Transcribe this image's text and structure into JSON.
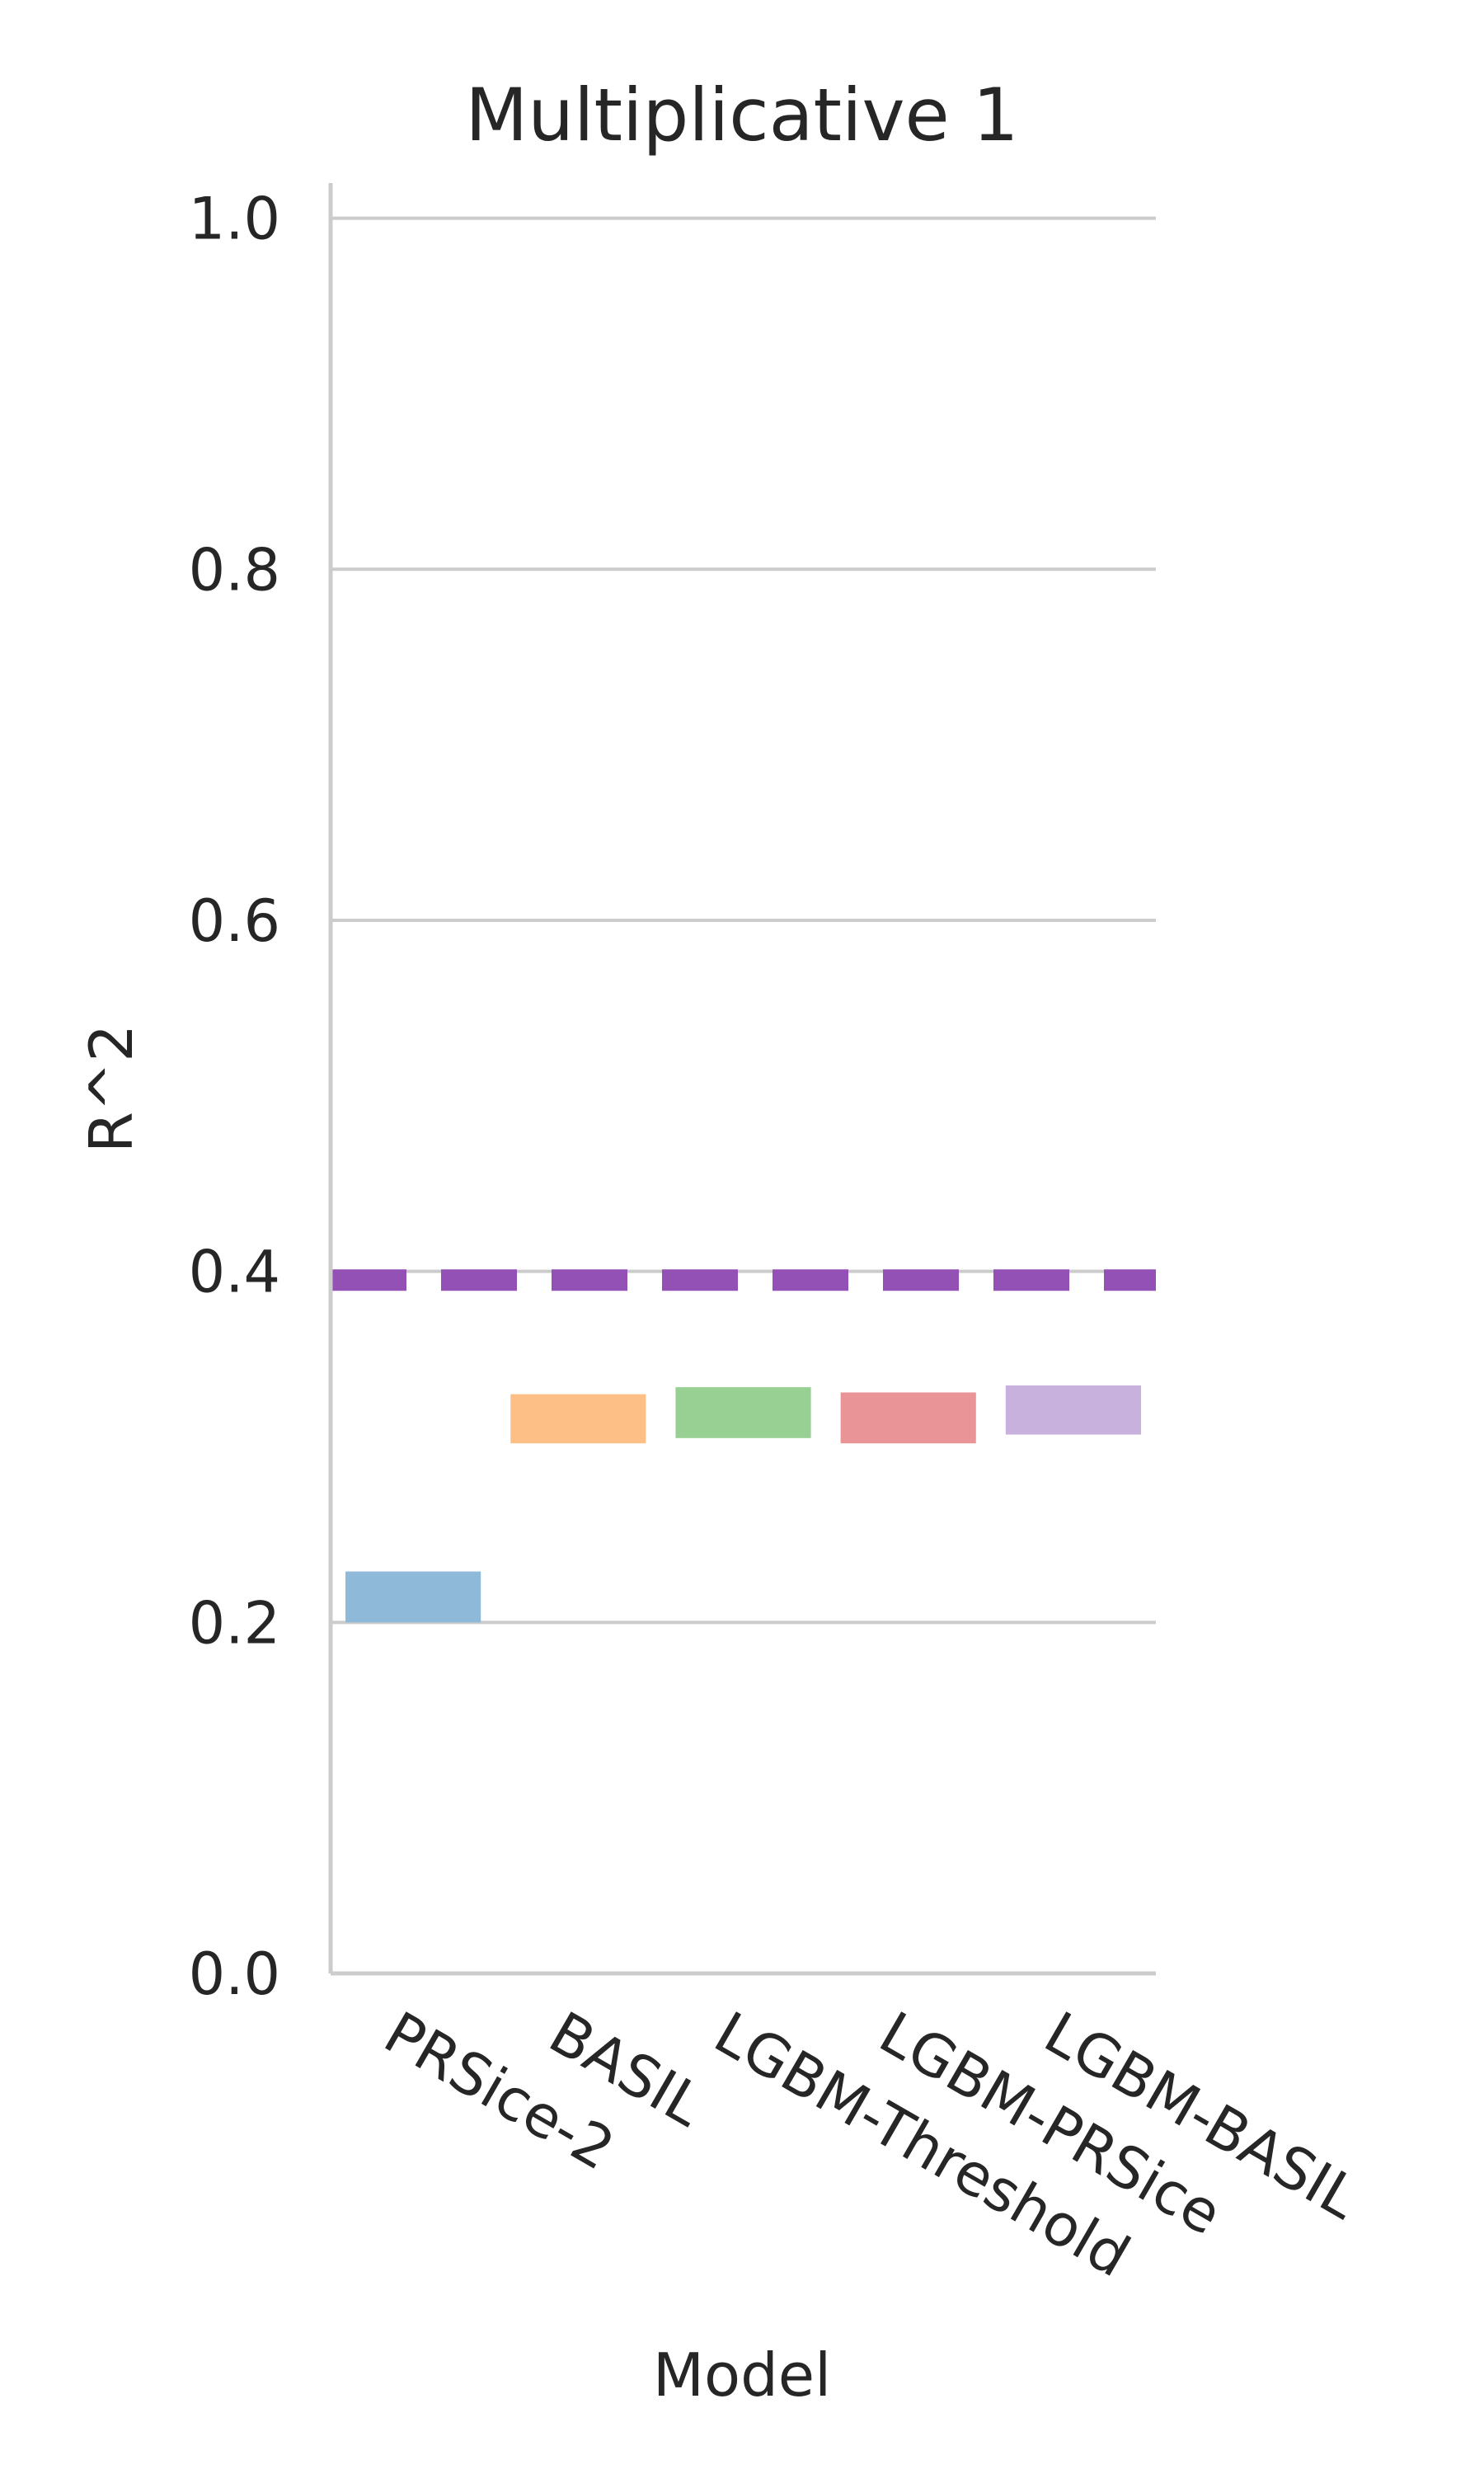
{
  "chart_data": {
    "type": "box",
    "title": "Multiplicative 1",
    "xlabel": "Model",
    "ylabel": "R^2",
    "ylim": [
      0.0,
      1.0
    ],
    "yticks": [
      "0.0",
      "0.2",
      "0.4",
      "0.6",
      "0.8",
      "1.0"
    ],
    "categories": [
      "PRSice-2",
      "BASIL",
      "LGBM-Threshold",
      "LGBM-PRSice",
      "LGBM-BASIL"
    ],
    "series": [
      {
        "category": "PRSice-2",
        "low": 0.2,
        "high": 0.229,
        "color": "#8fb9d9"
      },
      {
        "category": "BASIL",
        "low": 0.302,
        "high": 0.33,
        "color": "#fdbf86"
      },
      {
        "category": "LGBM-Threshold",
        "low": 0.305,
        "high": 0.334,
        "color": "#98d094"
      },
      {
        "category": "LGBM-PRSice",
        "low": 0.302,
        "high": 0.331,
        "color": "#e99496"
      },
      {
        "category": "LGBM-BASIL",
        "low": 0.307,
        "high": 0.335,
        "color": "#c8b1dc"
      }
    ],
    "reference_line": {
      "value": 0.395,
      "style": "dashed",
      "color": "#9351b6"
    },
    "grid": "horizontal",
    "legend": "none"
  }
}
